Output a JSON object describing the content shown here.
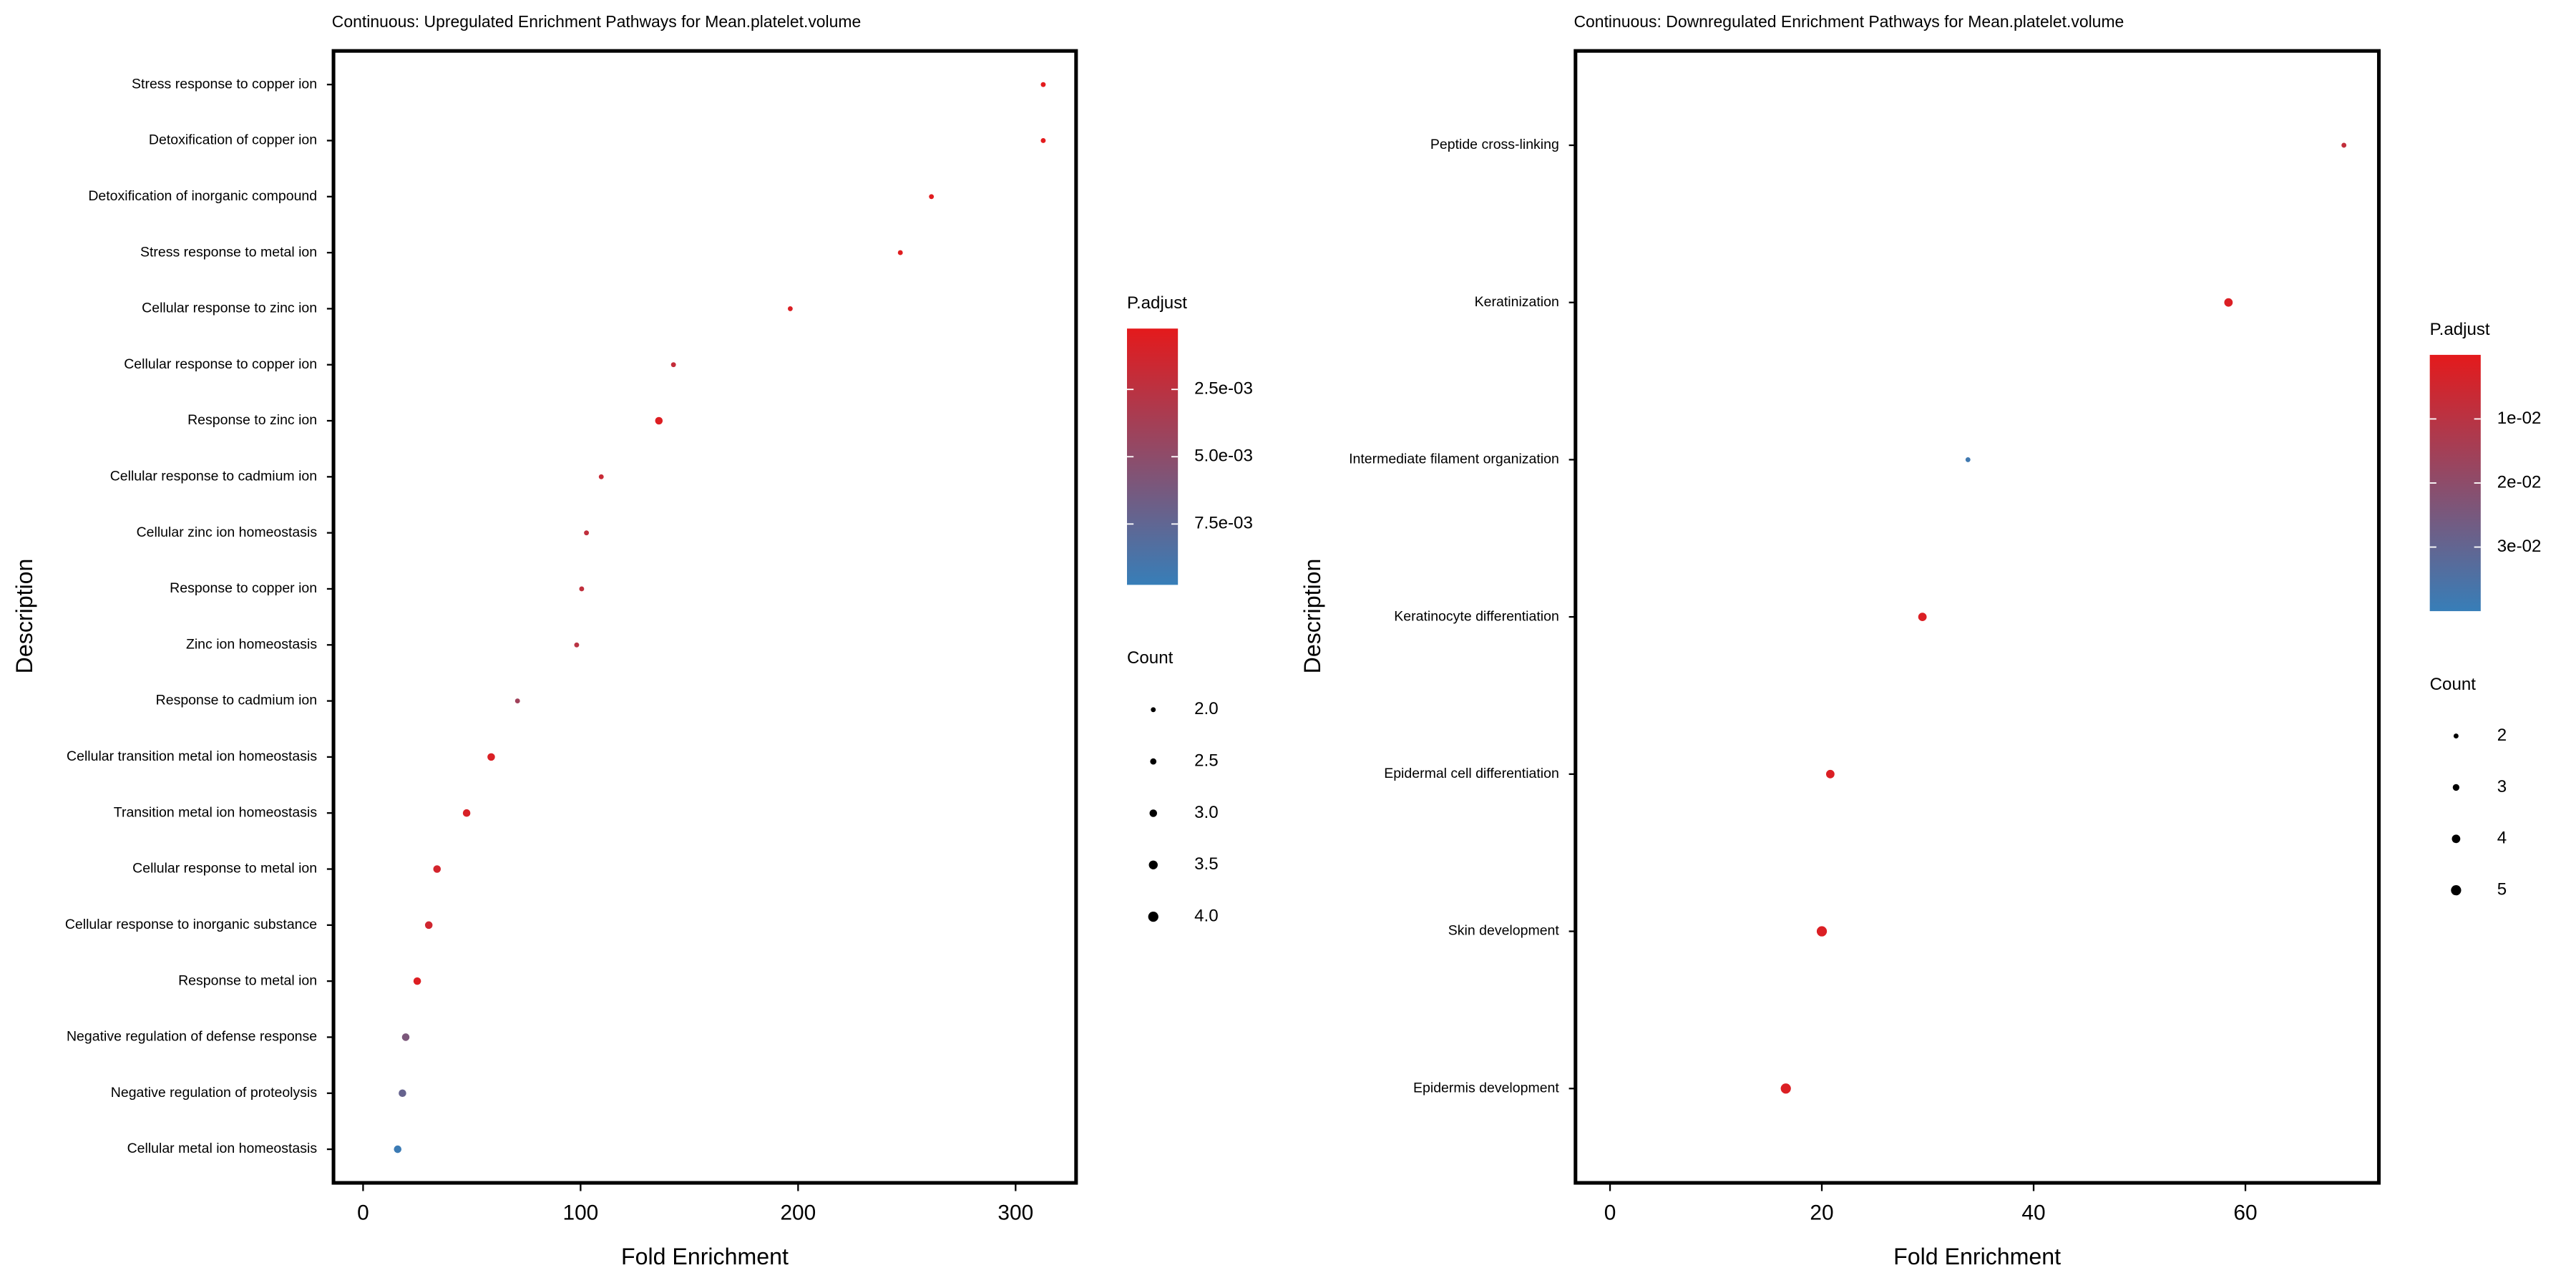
{
  "chart_data": [
    {
      "type": "dot",
      "title": "Continuous: Upregulated Enrichment Pathways for Mean.platelet.volume",
      "x_label": "Fold Enrichment",
      "y_label": "Description",
      "categories": [
        "Stress response to copper ion",
        "Detoxification of copper ion",
        "Detoxification of inorganic compound",
        "Stress response to metal ion",
        "Cellular response to zinc ion",
        "Cellular response to copper ion",
        "Response to zinc ion",
        "Cellular response to cadmium ion",
        "Cellular zinc ion homeostasis",
        "Response to copper ion",
        "Zinc ion homeostasis",
        "Response to cadmium ion",
        "Cellular transition metal ion homeostasis",
        "Transition metal ion homeostasis",
        "Cellular response to metal ion",
        "Cellular response to inorganic substance",
        "Response to metal ion",
        "Negative regulation of defense response",
        "Negative regulation of proteolysis",
        "Cellular metal ion homeostasis"
      ],
      "values": [
        312.7,
        312.7,
        261.3,
        247,
        196.4,
        142.7,
        136,
        109.5,
        102.7,
        100.5,
        98.2,
        71,
        58.9,
        47.6,
        34,
        30.2,
        24.9,
        19.6,
        18.1,
        15.9
      ],
      "counts": [
        2,
        2,
        2,
        2,
        2,
        2,
        3,
        2,
        2,
        2,
        2,
        2,
        3,
        3,
        3,
        3,
        3,
        3,
        3,
        3
      ],
      "p_adjust": [
        0.0003,
        0.0003,
        0.0004,
        0.0005,
        0.0008,
        0.002,
        0.0006,
        0.0018,
        0.0022,
        0.0022,
        0.0026,
        0.004,
        0.0008,
        0.0009,
        0.0012,
        0.0014,
        0.0006,
        0.006,
        0.0072,
        0.0095
      ],
      "xlim": [
        -13.6,
        327.8
      ],
      "xticks": [
        0,
        100,
        200,
        300
      ],
      "color_title": "P.adjust",
      "clim": [
        0.00024,
        0.00976
      ],
      "cticks": [
        {
          "value": 0.0025,
          "label": "2.5e-03"
        },
        {
          "value": 0.005,
          "label": "5.0e-03"
        },
        {
          "value": 0.0075,
          "label": "7.5e-03"
        }
      ],
      "color_low": "#e41a1c",
      "color_high": "#377eb8",
      "size_title": "Count",
      "slim": [
        2,
        4
      ],
      "size_ticks": [
        {
          "value": 2,
          "label": "2.0"
        },
        {
          "value": 2.5,
          "label": "2.5"
        },
        {
          "value": 3,
          "label": "3.0"
        },
        {
          "value": 3.5,
          "label": "3.5"
        },
        {
          "value": 4,
          "label": "4.0"
        }
      ]
    },
    {
      "type": "dot",
      "title": "Continuous: Downregulated Enrichment Pathways for Mean.platelet.volume",
      "x_label": "Fold Enrichment",
      "y_label": "Description",
      "categories": [
        "Peptide cross-linking",
        "Keratinization",
        "Intermediate filament organization",
        "Keratinocyte differentiation",
        "Epidermal cell differentiation",
        "Skin development",
        "Epidermis development"
      ],
      "values": [
        69.3,
        58.4,
        33.8,
        29.5,
        20.8,
        20,
        16.6
      ],
      "counts": [
        2,
        4,
        2,
        4,
        4,
        5,
        5
      ],
      "p_adjust": [
        0.008,
        0.002,
        0.038,
        0.002,
        0.002,
        0.002,
        0.002
      ],
      "xlim": [
        -3.26,
        72.6
      ],
      "xticks": [
        0,
        20,
        40,
        60
      ],
      "color_title": "P.adjust",
      "clim": [
        0,
        0.04
      ],
      "cticks": [
        {
          "value": 0.01,
          "label": "1e-02"
        },
        {
          "value": 0.02,
          "label": "2e-02"
        },
        {
          "value": 0.03,
          "label": "3e-02"
        }
      ],
      "color_low": "#e41a1c",
      "color_high": "#377eb8",
      "size_title": "Count",
      "slim": [
        2,
        5
      ],
      "size_ticks": [
        2,
        3,
        4,
        5
      ]
    }
  ]
}
